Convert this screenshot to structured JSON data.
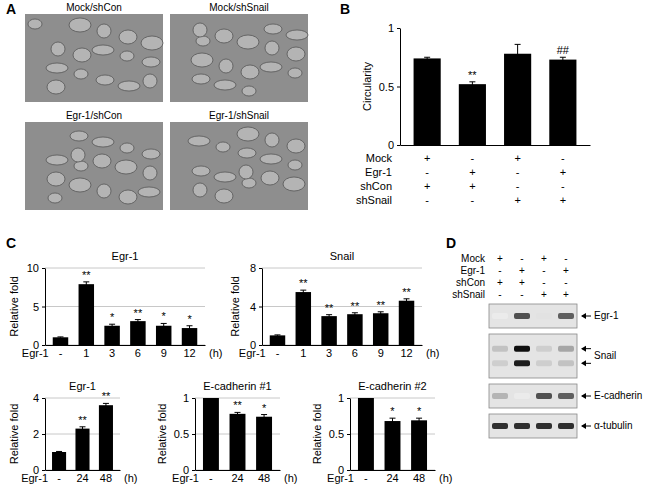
{
  "panel_letters": [
    "A",
    "B",
    "C",
    "D"
  ],
  "images": {
    "labels": [
      "Mock/shCon",
      "Mock/shSnail",
      "Egr-1/shCon",
      "Egr-1/shSnail"
    ]
  },
  "chart_data": [
    {
      "type": "bar",
      "ylabel": "Circularity",
      "categories": [
        null,
        null,
        null,
        null
      ],
      "values": [
        0.74,
        0.52,
        0.78,
        0.73
      ],
      "errors": [
        0.01,
        0.02,
        0.08,
        0.02
      ],
      "significance": [
        null,
        "**",
        null,
        "##"
      ],
      "conditions": [
        {
          "label": "Mock",
          "signs": [
            "+",
            "-",
            "+",
            "-"
          ]
        },
        {
          "label": "Egr-1",
          "signs": [
            "-",
            "+",
            "-",
            "+"
          ]
        },
        {
          "label": "shCon",
          "signs": [
            "+",
            "+",
            "-",
            "-"
          ]
        },
        {
          "label": "shSnail",
          "signs": [
            "-",
            "-",
            "+",
            "+"
          ]
        }
      ],
      "ylim": [
        0,
        1
      ],
      "yticks": [
        0,
        0.5,
        1
      ],
      "grid": false,
      "color": "#000000"
    },
    {
      "type": "bar",
      "title": "Egr-1",
      "ylabel": "Relative fold",
      "xlabel": "Egr-1",
      "x_unit": "(h)",
      "categories": [
        "-",
        "1",
        "3",
        "6",
        "9",
        "12"
      ],
      "values": [
        1,
        7.9,
        2.5,
        3.1,
        2.5,
        2.2
      ],
      "errors": [
        0.05,
        0.3,
        0.2,
        0.2,
        0.3,
        0.3
      ],
      "significance": [
        null,
        "**",
        "*",
        "**",
        "*",
        "*"
      ],
      "ylim": [
        0,
        10
      ],
      "yticks": [
        0,
        5,
        10
      ],
      "grid": true,
      "color": "#000000"
    },
    {
      "type": "bar",
      "title": "Snail",
      "ylabel": "Relative fold",
      "xlabel": "Egr-1",
      "x_unit": "(h)",
      "categories": [
        "-",
        "1",
        "3",
        "6",
        "9",
        "12"
      ],
      "values": [
        1,
        5.5,
        3.0,
        3.2,
        3.3,
        4.6
      ],
      "errors": [
        0.05,
        0.2,
        0.15,
        0.15,
        0.15,
        0.2
      ],
      "significance": [
        null,
        "**",
        "**",
        "**",
        "**",
        "**"
      ],
      "ylim": [
        0,
        8
      ],
      "yticks": [
        0,
        4,
        8
      ],
      "grid": true,
      "color": "#000000"
    },
    {
      "type": "bar",
      "title": "Egr-1",
      "ylabel": "Relative fold",
      "xlabel": "Egr-1",
      "x_unit": "(h)",
      "categories": [
        "-",
        "24",
        "48"
      ],
      "values": [
        1,
        2.3,
        3.6
      ],
      "errors": [
        0.03,
        0.1,
        0.1
      ],
      "significance": [
        null,
        "**",
        "**"
      ],
      "ylim": [
        0,
        4
      ],
      "yticks": [
        0,
        2,
        4
      ],
      "grid": true,
      "color": "#000000"
    },
    {
      "type": "bar",
      "title": "E-cadherin #1",
      "ylabel": "Relative fold",
      "xlabel": "Egr-1",
      "x_unit": "(h)",
      "categories": [
        "-",
        "24",
        "48"
      ],
      "values": [
        1,
        0.78,
        0.74
      ],
      "errors": [
        0.01,
        0.02,
        0.03
      ],
      "significance": [
        null,
        "**",
        "*"
      ],
      "ylim": [
        0,
        1
      ],
      "yticks": [
        0,
        0.5,
        1
      ],
      "grid": true,
      "color": "#000000"
    },
    {
      "type": "bar",
      "title": "E-cadherin #2",
      "ylabel": "Relative fold",
      "xlabel": "Egr-1",
      "x_unit": "(h)",
      "categories": [
        "-",
        "24",
        "48"
      ],
      "values": [
        1,
        0.68,
        0.69
      ],
      "errors": [
        0.01,
        0.04,
        0.03
      ],
      "significance": [
        null,
        "*",
        "*"
      ],
      "ylim": [
        0,
        1
      ],
      "yticks": [
        0,
        0.5,
        1
      ],
      "grid": true,
      "color": "#000000"
    }
  ],
  "blot": {
    "conditions": [
      {
        "label": "Mock",
        "signs": [
          "+",
          "-",
          "+",
          "-"
        ]
      },
      {
        "label": "Egr-1",
        "signs": [
          "-",
          "+",
          "-",
          "+"
        ]
      },
      {
        "label": "shCon",
        "signs": [
          "+",
          "+",
          "-",
          "-"
        ]
      },
      {
        "label": "shSnail",
        "signs": [
          "-",
          "-",
          "+",
          "+"
        ]
      }
    ],
    "panels": [
      {
        "label": "Egr-1",
        "bands": [
          [
            0.15,
            0.75,
            0.2,
            0.7
          ]
        ]
      },
      {
        "label": "Snail",
        "bands": [
          [
            0.35,
            0.95,
            0.3,
            0.45
          ],
          [
            0.3,
            0.9,
            0.3,
            0.35
          ]
        ]
      },
      {
        "label": "E-cadherin",
        "bands": [
          [
            0.4,
            0.15,
            0.75,
            0.7
          ]
        ]
      },
      {
        "label": "α-tubulin",
        "bands": [
          [
            0.85,
            0.85,
            0.85,
            0.85
          ]
        ]
      }
    ]
  }
}
